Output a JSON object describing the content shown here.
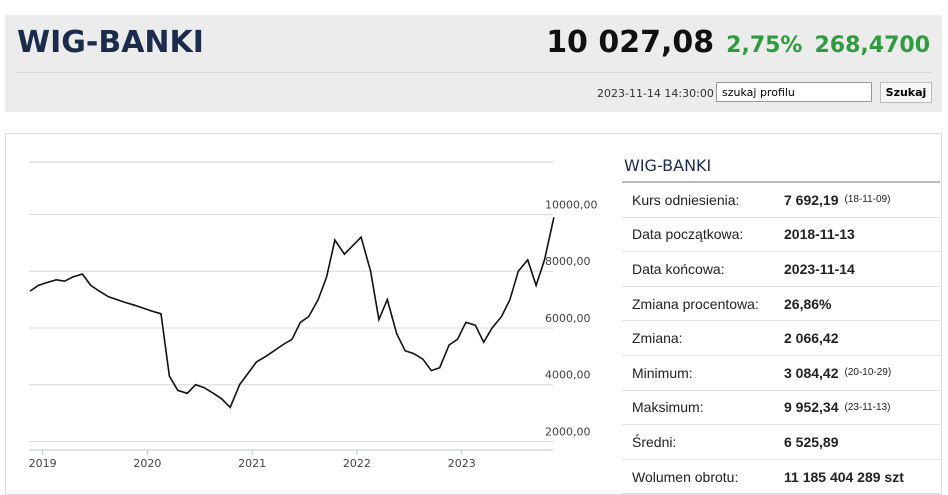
{
  "header": {
    "title": "WIG-BANKI",
    "price": "10 027,08",
    "change_pct": "2,75%",
    "change": "268,4700",
    "timestamp": "2023-11-14 14:30:00",
    "search_placeholder": "szukaj profilu",
    "search_button": "Szukaj"
  },
  "panel_title": "WIG-BANKI",
  "stats": {
    "rows": [
      {
        "label": "Kurs odniesienia:",
        "value": "7 692,19",
        "note": "(18-11-09)"
      },
      {
        "label": "Data początkowa:",
        "value": "2018-11-13"
      },
      {
        "label": "Data końcowa:",
        "value": "2023-11-14"
      },
      {
        "label": "Zmiana procentowa:",
        "value": "26,86%"
      },
      {
        "label": "Zmiana:",
        "value": "2 066,42"
      },
      {
        "label": "Minimum:",
        "value": "3 084,42",
        "note": "(20-10-29)"
      },
      {
        "label": "Maksimum:",
        "value": "9 952,34",
        "note": "(23-11-13)"
      },
      {
        "label": "Średni:",
        "value": "6 525,89"
      },
      {
        "label": "Wolumen obrotu:",
        "value": "11 185 404 289 szt"
      }
    ]
  },
  "chart_data": {
    "type": "line",
    "color": "#111111",
    "grid": true,
    "x": [
      2018.88,
      2018.96,
      2019.04,
      2019.13,
      2019.21,
      2019.29,
      2019.38,
      2019.46,
      2019.54,
      2019.63,
      2019.71,
      2019.79,
      2019.88,
      2019.96,
      2020.04,
      2020.13,
      2020.21,
      2020.29,
      2020.38,
      2020.46,
      2020.54,
      2020.63,
      2020.71,
      2020.79,
      2020.88,
      2020.96,
      2021.04,
      2021.13,
      2021.21,
      2021.29,
      2021.38,
      2021.46,
      2021.54,
      2021.63,
      2021.71,
      2021.79,
      2021.88,
      2021.96,
      2022.04,
      2022.13,
      2022.21,
      2022.29,
      2022.38,
      2022.46,
      2022.54,
      2022.63,
      2022.71,
      2022.79,
      2022.88,
      2022.96,
      2023.04,
      2023.13,
      2023.21,
      2023.29,
      2023.38,
      2023.46,
      2023.54,
      2023.63,
      2023.71,
      2023.79,
      2023.88
    ],
    "values": [
      7300,
      7500,
      7600,
      7700,
      7650,
      7800,
      7900,
      7500,
      7300,
      7100,
      7000,
      6900,
      6800,
      6700,
      6600,
      6500,
      4300,
      3800,
      3700,
      4000,
      3900,
      3700,
      3500,
      3200,
      4000,
      4400,
      4800,
      5000,
      5200,
      5400,
      5600,
      6200,
      6400,
      7000,
      7800,
      9100,
      8600,
      8900,
      9200,
      8000,
      6300,
      7000,
      5800,
      5200,
      5100,
      4900,
      4500,
      4600,
      5400,
      5600,
      6200,
      6100,
      5500,
      6000,
      6400,
      7000,
      8000,
      8400,
      7500,
      8400,
      9900
    ],
    "xlim": [
      2018.87,
      2023.9
    ],
    "xticks": [
      2019,
      2020,
      2021,
      2022,
      2023
    ],
    "ylim": [
      1700,
      11850
    ],
    "yticks": [
      {
        "value": 2000,
        "label": "2000,00"
      },
      {
        "value": 4000,
        "label": "4000,00"
      },
      {
        "value": 6000,
        "label": "6000,00"
      },
      {
        "value": 8000,
        "label": "8000,00"
      },
      {
        "value": 10000,
        "label": "10000,00"
      }
    ]
  }
}
